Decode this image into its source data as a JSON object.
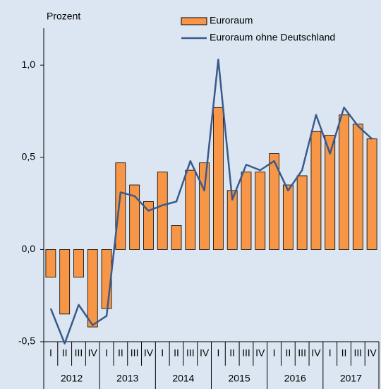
{
  "chart_data": {
    "type": "bar",
    "y_label": "Prozent",
    "categories": [
      "I",
      "II",
      "III",
      "IV",
      "I",
      "II",
      "III",
      "IV",
      "I",
      "II",
      "III",
      "IV",
      "I",
      "II",
      "III",
      "IV",
      "I",
      "II",
      "III",
      "IV",
      "I",
      "II",
      "III",
      "IV"
    ],
    "years": [
      "2012",
      "2013",
      "2014",
      "2015",
      "2016",
      "2017"
    ],
    "series": [
      {
        "name": "Euroraum",
        "type": "bar",
        "color": "#f79646",
        "values": [
          -0.15,
          -0.35,
          -0.15,
          -0.42,
          -0.32,
          0.47,
          0.35,
          0.26,
          0.42,
          0.13,
          0.43,
          0.47,
          0.77,
          0.32,
          0.42,
          0.42,
          0.52,
          0.35,
          0.4,
          0.64,
          0.62,
          0.73,
          0.68,
          0.6
        ]
      },
      {
        "name": "Euroraum ohne Deutschland",
        "type": "line",
        "color": "#3a5a8c",
        "values": [
          -0.32,
          -0.51,
          -0.3,
          -0.41,
          -0.36,
          0.31,
          0.29,
          0.21,
          0.24,
          0.26,
          0.48,
          0.32,
          1.03,
          0.27,
          0.46,
          0.43,
          0.48,
          0.32,
          0.43,
          0.73,
          0.52,
          0.77,
          0.67,
          0.6
        ]
      }
    ],
    "ylim": [
      -0.5,
      1.2
    ],
    "yticks": [
      {
        "value": -0.5,
        "label": "-0,5"
      },
      {
        "value": 0,
        "label": "0,0"
      },
      {
        "value": 0.5,
        "label": "0,5"
      },
      {
        "value": 1,
        "label": "1,0"
      }
    ]
  }
}
